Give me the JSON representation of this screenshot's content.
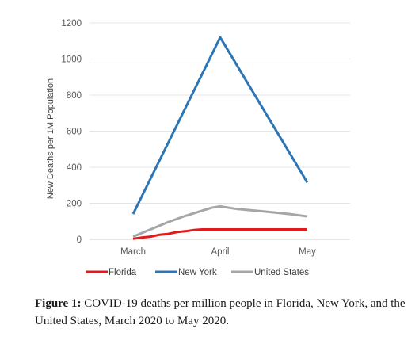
{
  "chart_data": {
    "type": "line",
    "categories": [
      "March",
      "April",
      "May"
    ],
    "series": [
      {
        "name": "Florida",
        "color": "#e31a1c",
        "x": [
          0,
          0.1,
          0.2,
          0.3,
          0.4,
          0.5,
          0.6,
          0.7,
          0.8,
          0.9,
          1.0,
          1.25,
          1.5,
          1.75,
          2.0
        ],
        "values": [
          3,
          10,
          15,
          25,
          30,
          40,
          45,
          52,
          55,
          55,
          55,
          55,
          55,
          55,
          55
        ]
      },
      {
        "name": "New York",
        "color": "#2e75b6",
        "x": [
          0,
          1,
          2
        ],
        "values": [
          140,
          1120,
          315
        ]
      },
      {
        "name": "United States",
        "color": "#a6a6a6",
        "x": [
          0,
          0.2,
          0.4,
          0.6,
          0.8,
          0.9,
          1.0,
          1.2,
          1.5,
          1.8,
          2.0
        ],
        "values": [
          15,
          55,
          95,
          130,
          160,
          175,
          183,
          168,
          155,
          140,
          127
        ]
      }
    ],
    "y_ticks": [
      "0",
      "200",
      "400",
      "600",
      "800",
      "1000",
      "1200"
    ],
    "ylim": [
      0,
      1200
    ],
    "xlabel": "",
    "ylabel": "New Deaths per 1M Population",
    "grid": true,
    "legend_position": "bottom"
  },
  "caption": {
    "label": "Figure 1:",
    "text": " COVID-19 deaths per million people in Florida, New York, and the United States, March 2020 to May 2020."
  }
}
